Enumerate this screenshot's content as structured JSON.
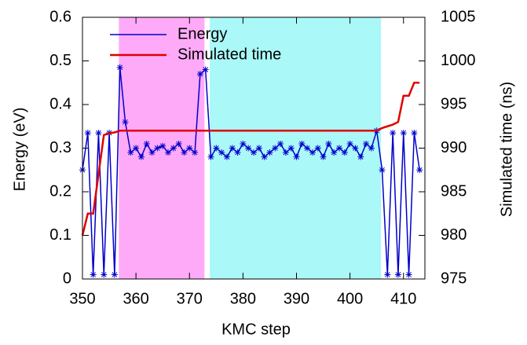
{
  "chart_data": {
    "type": "line",
    "xlabel": "KMC step",
    "ylabel": "Energy (eV)",
    "y2label": "Simulated time (ns)",
    "xlim": [
      350,
      414
    ],
    "xticks": [
      350,
      360,
      370,
      380,
      390,
      400,
      410
    ],
    "ylim": [
      0,
      0.6
    ],
    "yticks": [
      0,
      0.1,
      0.2,
      0.3,
      0.4,
      0.5,
      0.6
    ],
    "y2lim": [
      975,
      1005
    ],
    "y2ticks": [
      975,
      980,
      985,
      990,
      995,
      1000,
      1005
    ],
    "legend": "upper left",
    "spans": [
      {
        "x": [
          356.8,
          372.8
        ],
        "color": "#ffaaf8"
      },
      {
        "x": [
          373.8,
          405.8
        ],
        "color": "#aaf8f8"
      }
    ],
    "x": [
      350,
      351,
      352,
      353,
      354,
      355,
      356,
      357,
      358,
      359,
      360,
      361,
      362,
      363,
      364,
      365,
      366,
      367,
      368,
      369,
      370,
      371,
      372,
      373,
      374,
      375,
      376,
      377,
      378,
      379,
      380,
      381,
      382,
      383,
      384,
      385,
      386,
      387,
      388,
      389,
      390,
      391,
      392,
      393,
      394,
      395,
      396,
      397,
      398,
      399,
      400,
      401,
      402,
      403,
      404,
      405,
      406,
      407,
      408,
      409,
      410,
      411,
      412,
      413
    ],
    "series": [
      {
        "name": "Energy",
        "color": "#0000cc",
        "marker": "star",
        "values": [
          0.25,
          0.335,
          0.01,
          0.335,
          0.01,
          0.335,
          0.01,
          0.485,
          0.36,
          0.29,
          0.3,
          0.28,
          0.31,
          0.29,
          0.3,
          0.305,
          0.29,
          0.3,
          0.31,
          0.29,
          0.3,
          0.29,
          0.47,
          0.48,
          0.28,
          0.3,
          0.29,
          0.28,
          0.3,
          0.29,
          0.31,
          0.3,
          0.29,
          0.3,
          0.28,
          0.29,
          0.3,
          0.31,
          0.29,
          0.3,
          0.28,
          0.31,
          0.3,
          0.29,
          0.3,
          0.28,
          0.31,
          0.29,
          0.3,
          0.29,
          0.31,
          0.3,
          0.28,
          0.31,
          0.3,
          0.34,
          0.25,
          0.01,
          0.335,
          0.01,
          0.335,
          0.01,
          0.335,
          0.25
        ]
      },
      {
        "name": "Simulated time",
        "color": "#e00000",
        "axis": "y2",
        "values": [
          980,
          982.5,
          982.5,
          987,
          991.5,
          991.7,
          991.8,
          992,
          992,
          992,
          992,
          992,
          992,
          992,
          992,
          992,
          992,
          992,
          992,
          992,
          992,
          992,
          992,
          992,
          992,
          992,
          992,
          992,
          992,
          992,
          992,
          992,
          992,
          992,
          992,
          992,
          992,
          992,
          992,
          992,
          992,
          992,
          992,
          992,
          992,
          992,
          992,
          992,
          992,
          992,
          992,
          992,
          992,
          992,
          992,
          992,
          992.3,
          992.5,
          992.7,
          993,
          996,
          996,
          997.5,
          997.5
        ]
      }
    ]
  }
}
